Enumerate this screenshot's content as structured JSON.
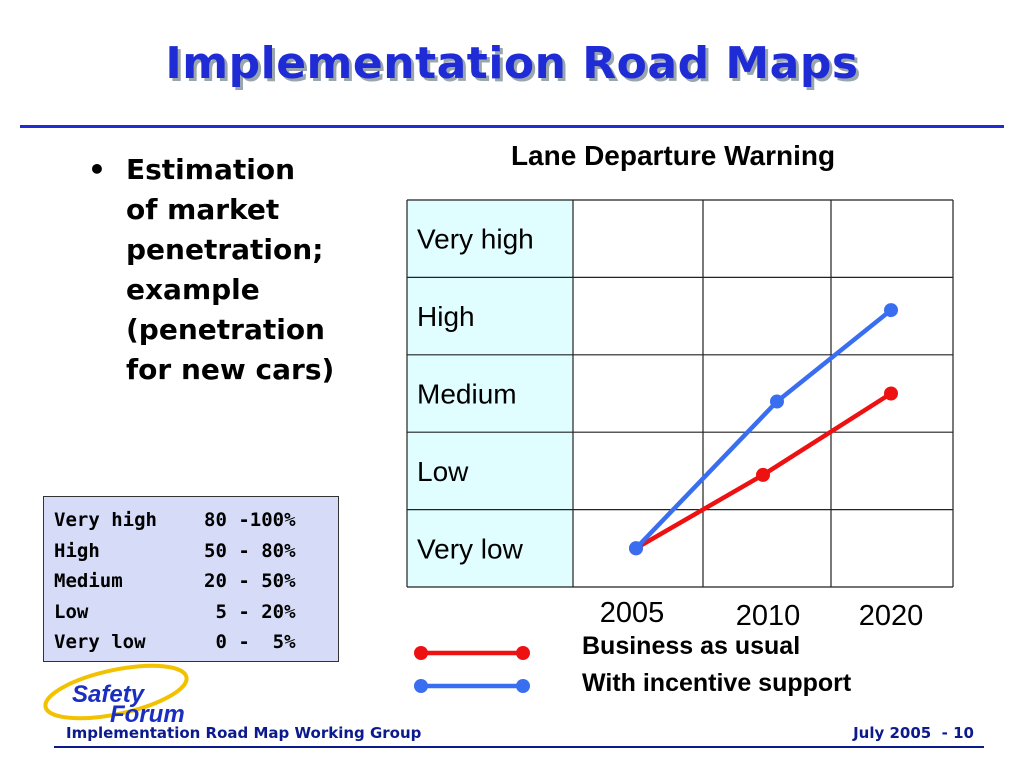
{
  "slide": {
    "title": "Implementation Road Maps",
    "bullet_symbol": "•",
    "bullet_lines": [
      "Estimation",
      "of market",
      "penetration;",
      "example",
      "(penetration",
      "for new cars)"
    ]
  },
  "penetration_legend": [
    {
      "level": "Very high",
      "range": "80 -100%"
    },
    {
      "level": "High",
      "range": "50 - 80%"
    },
    {
      "level": "Medium",
      "range": "20 - 50%"
    },
    {
      "level": "Low",
      "range": " 5 - 20%"
    },
    {
      "level": "Very low",
      "range": " 0 -  5%"
    }
  ],
  "chart_data": {
    "type": "line",
    "title": "Lane Departure Warning",
    "y_categories": [
      "Very low",
      "Low",
      "Medium",
      "High",
      "Very high"
    ],
    "x": [
      "2005",
      "2010",
      "2020"
    ],
    "series": [
      {
        "name": "Business as usual",
        "color": "#ee1111",
        "values": [
          {
            "x": "2005",
            "y": "Very low"
          },
          {
            "x": "2010",
            "y": "Low"
          },
          {
            "x": "2020",
            "y": "Medium"
          }
        ]
      },
      {
        "name": "With incentive support",
        "color": "#3a6ef0",
        "values": [
          {
            "x": "2005",
            "y": "Very low"
          },
          {
            "x": "2010",
            "y": "Medium"
          },
          {
            "x": "2020",
            "y": "High"
          }
        ]
      }
    ],
    "grid": true,
    "legend_position": "bottom"
  },
  "footer": {
    "left": "Implementation Road Map Working Group",
    "right": "July 2005  - 10"
  },
  "logo": {
    "line1": "Safety",
    "line2": "Forum"
  },
  "colors": {
    "title": "#1f2cd6",
    "label_column_bg": "#e0feff",
    "legend_box_bg": "#d6dcf8",
    "footer": "#0b1a8c"
  }
}
